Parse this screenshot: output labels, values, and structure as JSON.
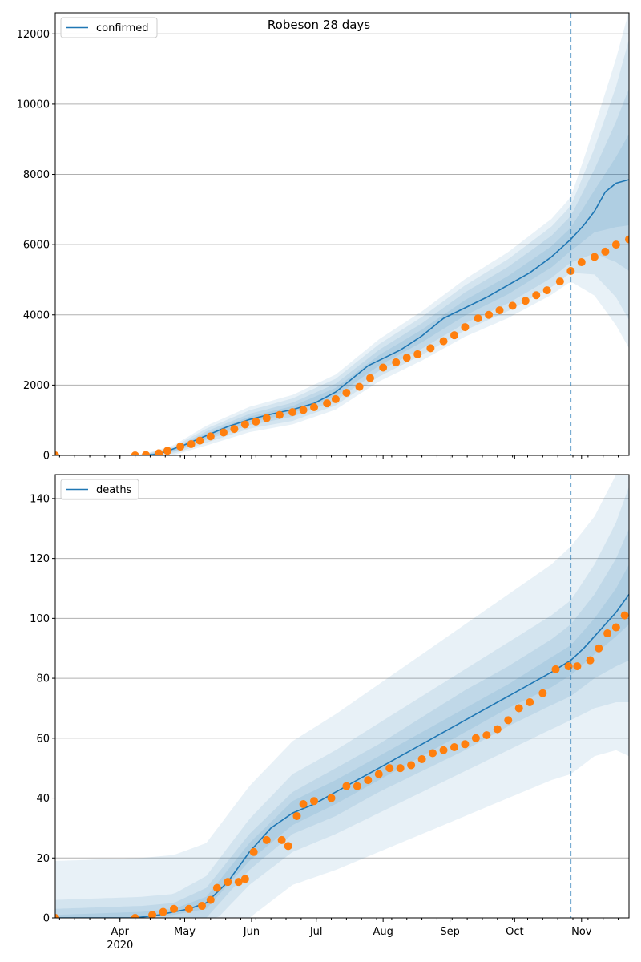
{
  "chart_data": [
    {
      "type": "line",
      "title": "Robeson 28 days",
      "legend": {
        "position": "top-left",
        "entries": [
          "confirmed"
        ]
      },
      "grid": "y",
      "ylim": [
        0,
        12600
      ],
      "yticks": [
        0,
        2000,
        4000,
        6000,
        8000,
        10000,
        12000
      ],
      "ytick_labels": [
        "0",
        "2000",
        "4000",
        "6000",
        "8000",
        "10000",
        "12000"
      ],
      "series": [
        {
          "name": "confirmed",
          "kind": "model-line",
          "x": [
            0,
            37,
            45,
            50,
            60,
            70,
            80,
            90,
            100,
            110,
            120,
            130,
            140,
            145,
            150,
            160,
            170,
            180,
            190,
            200,
            210,
            220,
            230,
            239,
            245,
            250,
            255,
            260,
            266
          ],
          "y": [
            0,
            0,
            20,
            80,
            300,
            560,
            820,
            1020,
            1170,
            1300,
            1480,
            1800,
            2300,
            2550,
            2700,
            3000,
            3400,
            3900,
            4200,
            4500,
            4850,
            5200,
            5650,
            6150,
            6550,
            6950,
            7500,
            7750,
            7850
          ]
        },
        {
          "name": "observed",
          "kind": "markers",
          "x": [
            0,
            37,
            42,
            48,
            52,
            58,
            63,
            67,
            72,
            78,
            83,
            88,
            93,
            98,
            104,
            110,
            115,
            120,
            126,
            130,
            135,
            141,
            146,
            152,
            158,
            163,
            168,
            174,
            180,
            185,
            190,
            196,
            201,
            206,
            212,
            218,
            223,
            228,
            234,
            239,
            244,
            250,
            255,
            260,
            266
          ],
          "y": [
            0,
            0,
            10,
            60,
            130,
            250,
            320,
            420,
            540,
            650,
            750,
            880,
            960,
            1060,
            1150,
            1230,
            1290,
            1370,
            1480,
            1600,
            1780,
            1950,
            2200,
            2500,
            2650,
            2780,
            2880,
            3050,
            3250,
            3420,
            3650,
            3900,
            4000,
            4130,
            4260,
            4400,
            4560,
            4700,
            4950,
            5250,
            5500,
            5650,
            5800,
            6000,
            6150
          ]
        }
      ],
      "bands": {
        "x": [
          0,
          40,
          55,
          70,
          90,
          110,
          130,
          150,
          170,
          190,
          210,
          230,
          239,
          250,
          260,
          266
        ],
        "mid": [
          0,
          0,
          150,
          560,
          1020,
          1300,
          1800,
          2700,
          3400,
          4200,
          4850,
          5650,
          6150,
          6950,
          7500,
          7850
        ],
        "half_widths": [
          [
            0,
            5,
            30,
            60,
            80,
            100,
            120,
            150,
            180,
            220,
            260,
            300,
            330,
            600,
            1000,
            1300
          ],
          [
            0,
            10,
            60,
            120,
            160,
            200,
            240,
            300,
            360,
            440,
            520,
            600,
            660,
            1200,
            2000,
            2600
          ],
          [
            0,
            15,
            100,
            200,
            260,
            320,
            380,
            460,
            540,
            640,
            740,
            860,
            950,
            1800,
            3000,
            4000
          ],
          [
            0,
            20,
            140,
            280,
            360,
            420,
            500,
            600,
            700,
            820,
            940,
            1080,
            1200,
            2400,
            3800,
            4800
          ]
        ]
      },
      "vline_x": 239
    },
    {
      "type": "line",
      "title": "",
      "legend": {
        "position": "top-left",
        "entries": [
          "deaths"
        ]
      },
      "grid": "y",
      "ylim": [
        0,
        148
      ],
      "yticks": [
        0,
        20,
        40,
        60,
        80,
        100,
        120,
        140
      ],
      "ytick_labels": [
        "0",
        "20",
        "40",
        "60",
        "80",
        "100",
        "120",
        "140"
      ],
      "xticks": [
        30,
        60,
        91,
        121,
        152,
        183,
        213,
        244
      ],
      "xtick_labels": [
        "Apr",
        "May",
        "Jun",
        "Jul",
        "Aug",
        "Sep",
        "Oct",
        "Nov"
      ],
      "x_sublabel": {
        "at": 30,
        "text": "2020"
      },
      "series": [
        {
          "name": "deaths",
          "kind": "model-line",
          "x": [
            0,
            37,
            48,
            55,
            62,
            70,
            80,
            90,
            100,
            110,
            120,
            130,
            140,
            150,
            160,
            170,
            180,
            190,
            200,
            210,
            220,
            230,
            239,
            245,
            250,
            255,
            260,
            266
          ],
          "y": [
            0,
            0,
            1,
            2,
            3,
            5,
            12,
            22,
            30,
            35,
            38,
            42,
            46,
            50,
            54,
            58,
            62,
            66,
            70,
            74,
            78,
            82,
            86,
            90,
            94,
            98,
            102,
            108
          ]
        },
        {
          "name": "observed",
          "kind": "markers",
          "x": [
            0,
            37,
            45,
            50,
            55,
            62,
            68,
            72,
            75,
            80,
            85,
            88,
            92,
            98,
            105,
            108,
            112,
            115,
            120,
            128,
            135,
            140,
            145,
            150,
            155,
            160,
            165,
            170,
            175,
            180,
            185,
            190,
            195,
            200,
            205,
            210,
            215,
            220,
            226,
            232,
            238,
            242,
            248,
            252,
            256,
            260,
            264
          ],
          "y": [
            0,
            0,
            1,
            2,
            3,
            3,
            4,
            6,
            10,
            12,
            12,
            13,
            22,
            26,
            26,
            24,
            34,
            38,
            39,
            40,
            44,
            44,
            46,
            48,
            50,
            50,
            51,
            53,
            55,
            56,
            57,
            58,
            60,
            61,
            63,
            66,
            70,
            72,
            75,
            83,
            84,
            84,
            86,
            90,
            95,
            97,
            101
          ]
        }
      ],
      "bands": {
        "x": [
          0,
          40,
          55,
          70,
          90,
          110,
          130,
          150,
          170,
          190,
          210,
          230,
          239,
          250,
          260,
          266
        ],
        "mid": [
          0,
          1,
          2,
          5,
          22,
          35,
          42,
          50,
          58,
          66,
          74,
          82,
          86,
          94,
          102,
          108
        ],
        "half_widths": [
          [
            1,
            1,
            1,
            2,
            3,
            4,
            4,
            4,
            4,
            4,
            4,
            5,
            5,
            6,
            8,
            10
          ],
          [
            3,
            3,
            3,
            5,
            6,
            7,
            8,
            8,
            9,
            10,
            10,
            11,
            12,
            14,
            18,
            22
          ],
          [
            6,
            6,
            6,
            9,
            11,
            13,
            14,
            15,
            16,
            17,
            18,
            19,
            20,
            24,
            30,
            36
          ],
          [
            19,
            19,
            19,
            20,
            22,
            24,
            26,
            28,
            30,
            32,
            34,
            36,
            38,
            40,
            46,
            54
          ]
        ]
      },
      "vline_x": 239
    }
  ]
}
